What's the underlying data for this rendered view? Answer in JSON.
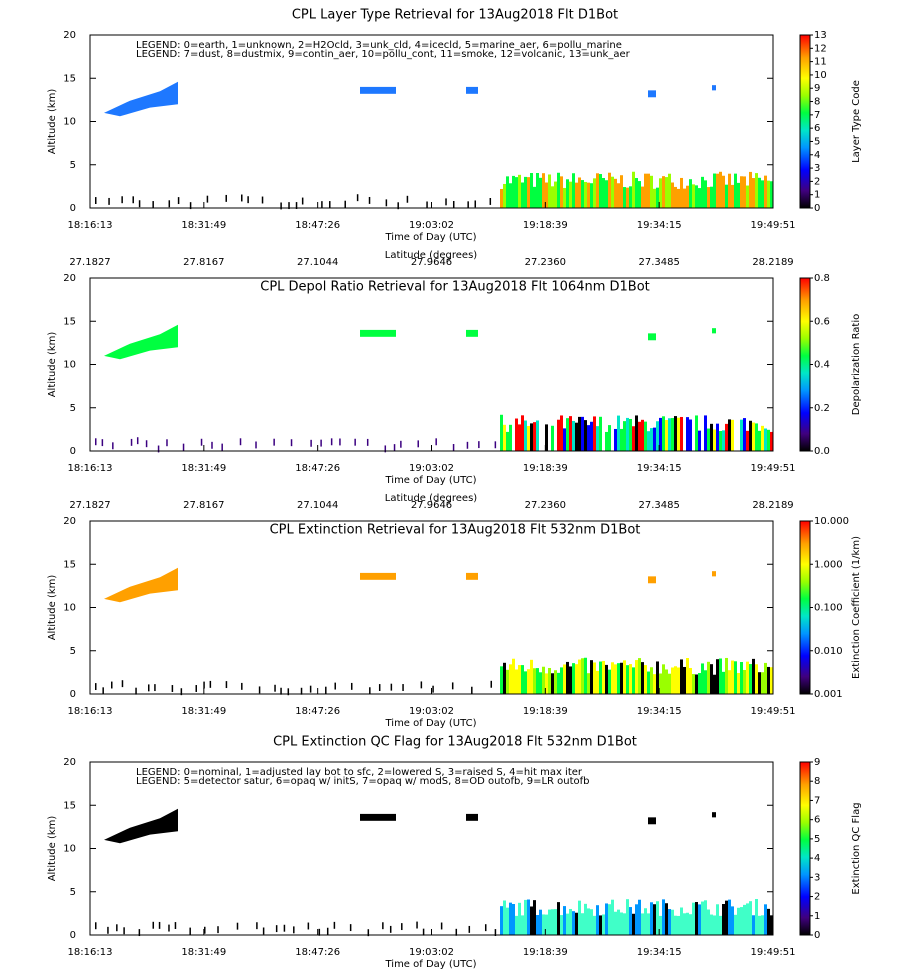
{
  "chart_data": [
    {
      "type": "curtain",
      "title": "CPL Layer Type Retrieval for 13Aug2018 Flt D1Bot",
      "legend": [
        "LEGEND: 0=earth, 1=unknown, 2=H2Ocld, 3=unk_cld, 4=icecld, 5=marine_aer, 6=pollu_marine",
        "LEGEND: 7=dust, 8=dustmix, 9=contin_aer, 10=pollu_cont, 11=smoke, 12=volcanic, 13=unk_aer"
      ],
      "xlabel": "Time of Day (UTC)",
      "time_labels": [
        "18:16:13",
        "18:31:49",
        "18:47:26",
        "19:03:02",
        "19:18:39",
        "19:34:15",
        "19:49:51"
      ],
      "ylabel": "Altitude (km)",
      "ylim": [
        0,
        20
      ],
      "yticks": [
        0,
        5,
        10,
        15,
        20
      ],
      "colorbar_label": "Layer Type Code",
      "clim": [
        0,
        13
      ],
      "cticks": [
        0,
        1,
        2,
        3,
        4,
        5,
        6,
        7,
        8,
        9,
        10,
        11,
        12,
        13
      ],
      "colorbar_scale": "linear"
    },
    {
      "type": "curtain",
      "title": "CPL Depol Ratio Retrieval for 13Aug2018 Flt 1064nm D1Bot",
      "top_label": "Latitude (degrees)",
      "latitude_labels": [
        "27.1827",
        "27.8167",
        "27.1044",
        "27.9646",
        "27.2360",
        "27.3485",
        "28.2189"
      ],
      "xlabel": "Time of Day (UTC)",
      "time_labels": [
        "18:16:13",
        "18:31:49",
        "18:47:26",
        "19:03:02",
        "19:18:39",
        "19:34:15",
        "19:49:51"
      ],
      "ylabel": "Altitude (km)",
      "ylim": [
        0,
        20
      ],
      "yticks": [
        0,
        5,
        10,
        15,
        20
      ],
      "colorbar_label": "Depolarization Ratio",
      "clim": [
        0,
        0.8
      ],
      "cticks": [
        {
          "value": 0,
          "label": "0.0"
        },
        {
          "value": 0.2,
          "label": "0.2"
        },
        {
          "value": 0.4,
          "label": "0.4"
        },
        {
          "value": 0.6,
          "label": "0.6"
        },
        {
          "value": 0.8,
          "label": "0.8"
        }
      ],
      "colorbar_scale": "linear"
    },
    {
      "type": "curtain",
      "title": "CPL Extinction Retrieval for 13Aug2018 Flt 532nm D1Bot",
      "top_label": "Latitude (degrees)",
      "latitude_labels": [
        "27.1827",
        "27.8167",
        "27.1044",
        "27.9646",
        "27.2360",
        "27.3485",
        "28.2189"
      ],
      "xlabel": "Time of Day (UTC)",
      "time_labels": [
        "18:16:13",
        "18:31:49",
        "18:47:26",
        "19:03:02",
        "19:18:39",
        "19:34:15",
        "19:49:51"
      ],
      "ylabel": "Altitude (km)",
      "ylim": [
        0,
        20
      ],
      "yticks": [
        0,
        5,
        10,
        15,
        20
      ],
      "colorbar_label": "Extinction Coefficient (1/km)",
      "clim": [
        0.001,
        10
      ],
      "cticks": [
        {
          "value": 0.001,
          "label": "0.001"
        },
        {
          "value": 0.01,
          "label": "0.010"
        },
        {
          "value": 0.1,
          "label": "0.100"
        },
        {
          "value": 1,
          "label": "1.000"
        },
        {
          "value": 10,
          "label": "10.000"
        }
      ],
      "colorbar_scale": "log"
    },
    {
      "type": "curtain",
      "title": "CPL Extinction QC Flag for 13Aug2018 Flt 532nm D1Bot",
      "legend": [
        "LEGEND: 0=nominal, 1=adjusted lay bot to sfc, 2=lowered S, 3=raised S, 4=hit max iter",
        "LEGEND: 5=detector satur, 6=opaq w/ initS, 7=opaq w/ modS, 8=OD outofb, 9=LR outofb"
      ],
      "xlabel": "Time of Day (UTC)",
      "time_labels": [
        "18:16:13",
        "18:31:49",
        "18:47:26",
        "19:03:02",
        "19:18:39",
        "19:34:15",
        "19:49:51"
      ],
      "ylabel": "Altitude (km)",
      "ylim": [
        0,
        20
      ],
      "yticks": [
        0,
        5,
        10,
        15,
        20
      ],
      "colorbar_label": "Extinction QC Flag",
      "clim": [
        0,
        9
      ],
      "cticks": [
        0,
        1,
        2,
        3,
        4,
        5,
        6,
        7,
        8,
        9
      ],
      "colorbar_scale": "linear"
    }
  ]
}
